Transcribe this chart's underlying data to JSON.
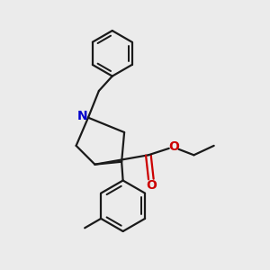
{
  "bg_color": "#ebebeb",
  "bond_color": "#1a1a1a",
  "nitrogen_color": "#0000cc",
  "oxygen_color": "#cc0000",
  "line_width": 1.6,
  "figsize": [
    3.0,
    3.0
  ],
  "dpi": 100,
  "xlim": [
    0,
    10
  ],
  "ylim": [
    0,
    10
  ]
}
